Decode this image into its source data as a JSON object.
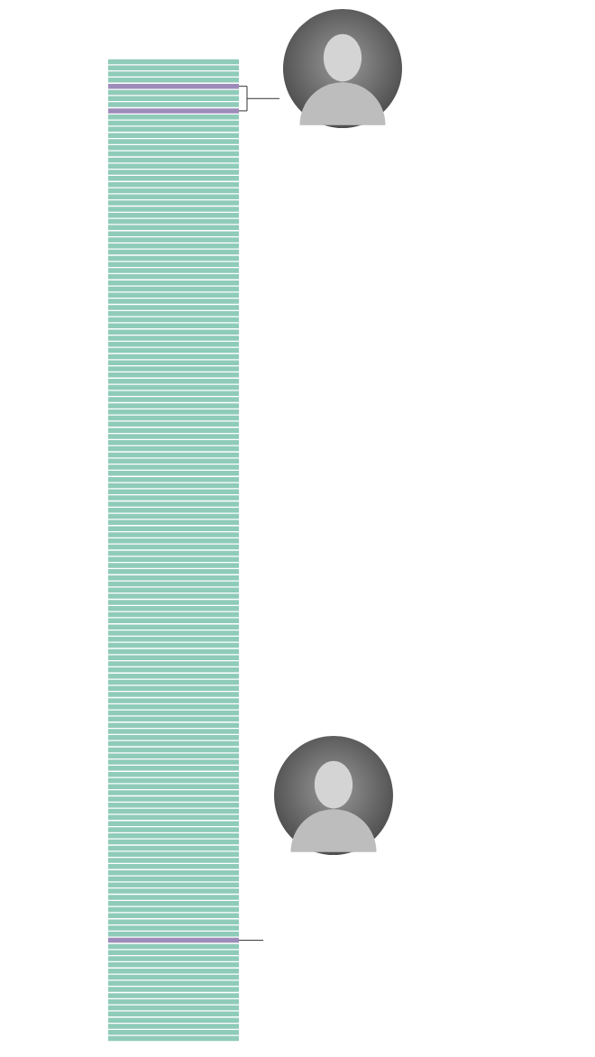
{
  "chart_data": {
    "type": "unit",
    "orientation": "horizontal",
    "count": 160,
    "highlighted": [
      5,
      9,
      144
    ],
    "color": "#8fcbb9",
    "highlight_color": "#9d8cba",
    "tick_labels": false
  }
}
